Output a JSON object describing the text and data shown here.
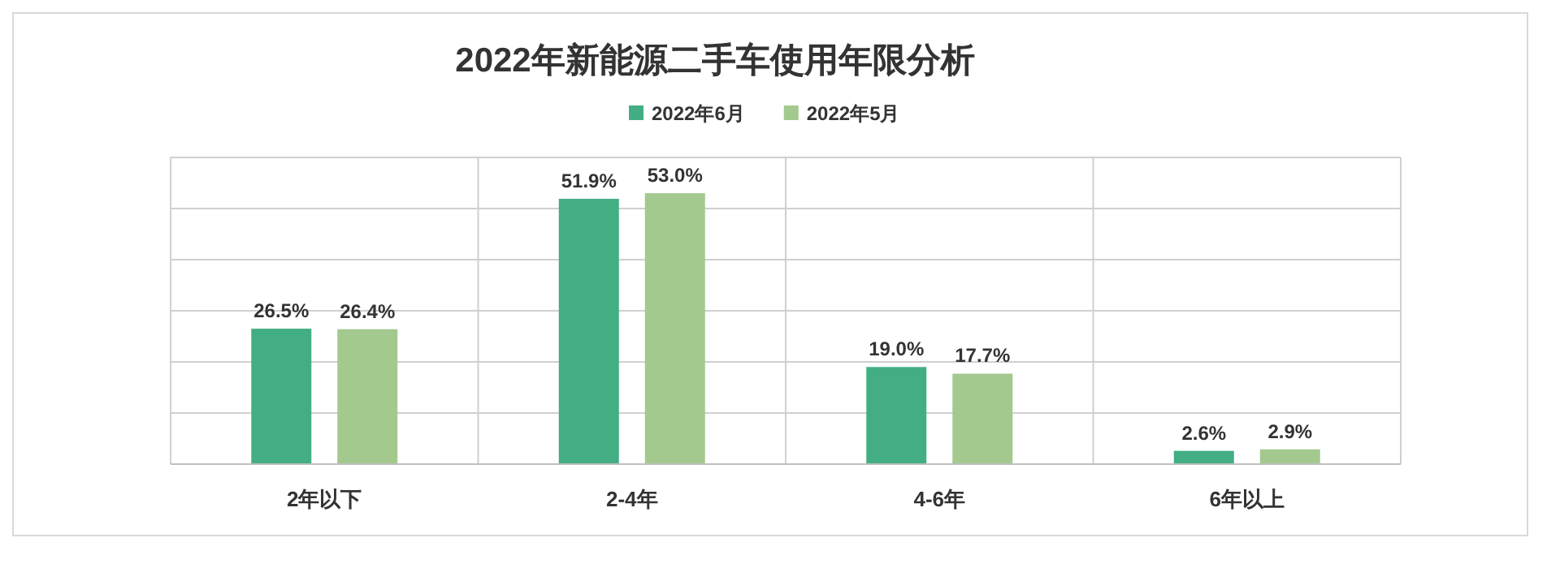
{
  "chart_data": {
    "type": "bar",
    "title": "2022年新能源二手车使用年限分析",
    "categories": [
      "2年以下",
      "2-4年",
      "4-6年",
      "6年以上"
    ],
    "series": [
      {
        "name": "2022年6月",
        "color": "#43ae84",
        "values": [
          26.5,
          51.9,
          19.0,
          2.6
        ],
        "value_labels": [
          "26.5%",
          "51.9%",
          "19.0%",
          "2.6%"
        ]
      },
      {
        "name": "2022年5月",
        "color": "#a3c98f",
        "values": [
          26.4,
          53.0,
          17.7,
          2.9
        ],
        "value_labels": [
          "26.4%",
          "53.0%",
          "17.7%",
          "2.9%"
        ]
      }
    ],
    "ylim": [
      0,
      60
    ],
    "yticks": [
      {
        "value": 0,
        "label": null
      },
      {
        "value": 10,
        "label": null
      },
      {
        "value": 20,
        "label": null
      },
      {
        "value": 30,
        "label": null
      },
      {
        "value": 40,
        "label": null
      },
      {
        "value": 50,
        "label": null
      },
      {
        "value": 60,
        "label": null
      }
    ],
    "grid": true,
    "legend": "top"
  }
}
